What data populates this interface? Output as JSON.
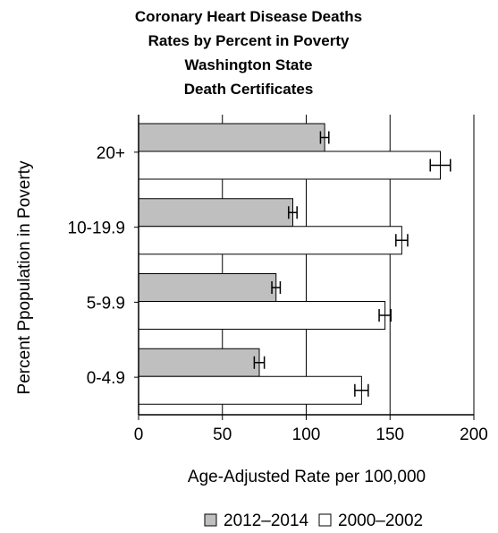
{
  "chart_data": {
    "type": "bar",
    "orientation": "horizontal",
    "title": [
      "Coronary Heart Disease Deaths",
      "Rates by Percent in Poverty",
      "Washington State",
      "Death Certificates"
    ],
    "xlabel": "Age-Adjusted Rate per 100,000",
    "ylabel": "Percent Ppopulation in Poverty",
    "xlim": [
      0,
      200
    ],
    "xticks": [
      0,
      50,
      100,
      150,
      200
    ],
    "grid": "vertical",
    "categories": [
      "20+",
      "10-19.9",
      "5-9.9",
      "0-4.9"
    ],
    "series": [
      {
        "name": "2012–2014",
        "color": "#bfbfbf",
        "values": [
          111,
          92,
          82,
          72
        ],
        "error": [
          2.5,
          2.5,
          2.5,
          3
        ]
      },
      {
        "name": "2000–2002",
        "color": "#ffffff",
        "values": [
          180,
          157,
          147,
          133
        ],
        "error": [
          6,
          3.5,
          3.5,
          4
        ]
      }
    ],
    "legend": "bottom"
  }
}
